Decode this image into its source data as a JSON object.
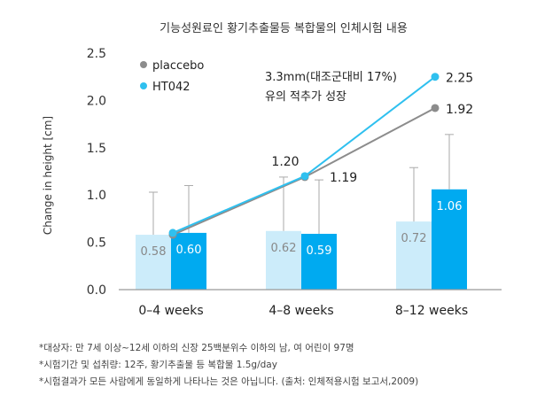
{
  "chart_data": {
    "type": "bar",
    "title": "기능성원료인 황기추출물등 복합물의 인체시험 내용",
    "xlabel": "",
    "ylabel": "Change in height [cm]",
    "ylim": [
      0,
      2.5
    ],
    "yticks": [
      "0.0",
      "0.5",
      "1.0",
      "1.5",
      "2.0",
      "2.5"
    ],
    "categories": [
      "0–4 weeks",
      "4–8 weeks",
      "8–12 weeks"
    ],
    "series": [
      {
        "name": "placcebo",
        "color": "#ccecfa",
        "values": [
          0.58,
          0.62,
          0.72
        ],
        "value_labels": [
          "0.58",
          "0.62",
          "0.72"
        ],
        "error_upper": [
          1.03,
          1.19,
          1.29
        ],
        "line_values": [
          0.58,
          1.19,
          1.92
        ],
        "line_labels": [
          "",
          "1.19",
          "1.92"
        ],
        "marker_color": "#8c8c8c"
      },
      {
        "name": "HT042",
        "color": "#00aaf0",
        "values": [
          0.6,
          0.59,
          1.06
        ],
        "value_labels": [
          "0.60",
          "0.59",
          "1.06"
        ],
        "error_upper": [
          1.1,
          1.16,
          1.64
        ],
        "line_values": [
          0.6,
          1.2,
          2.25
        ],
        "line_labels": [
          "",
          "1.20",
          "2.25"
        ],
        "marker_color": "#2fc0ef"
      }
    ],
    "legend_position": "top-left",
    "annotation": [
      "3.3mm(대조군대비 17%)",
      "유의 적추가 성장"
    ]
  },
  "footnotes": [
    "*대상자: 만 7세 이상~12세 이하의 신장 25백분위수 이하의 남, 여 어린이 97명",
    "*시험기간 및 섭취량: 12주, 황기추출물 등 복합물 1.5g/day",
    "*시험결과가 모든 사람에게 동일하게 나타나는 것은 아닙니다. (출처: 인체적용시험 보고서,2009)"
  ]
}
